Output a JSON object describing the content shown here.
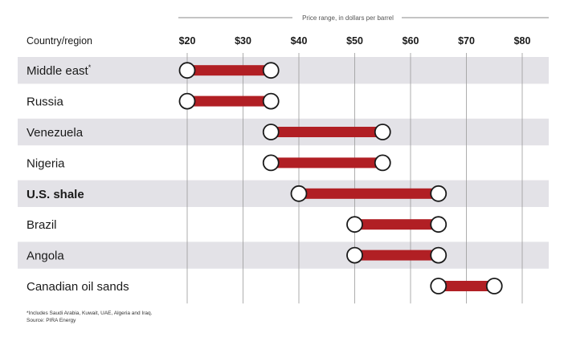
{
  "chart_data": {
    "type": "range",
    "axis_title": "Price range, in dollars per barrel",
    "category_header": "Country/region",
    "ticks": [
      20,
      30,
      40,
      50,
      60,
      70,
      80
    ],
    "tick_labels": [
      "$20",
      "$30",
      "$40",
      "$50",
      "$60",
      "$70",
      "$80"
    ],
    "xlim": [
      20,
      80
    ],
    "rows": [
      {
        "label": "Middle east",
        "marker": "*",
        "low": 20,
        "high": 35,
        "bold": false
      },
      {
        "label": "Russia",
        "low": 20,
        "high": 35,
        "bold": false
      },
      {
        "label": "Venezuela",
        "low": 35,
        "high": 55,
        "bold": false
      },
      {
        "label": "Nigeria",
        "low": 35,
        "high": 55,
        "bold": false
      },
      {
        "label": "U.S. shale",
        "low": 40,
        "high": 65,
        "bold": true
      },
      {
        "label": "Brazil",
        "low": 50,
        "high": 65,
        "bold": false
      },
      {
        "label": "Angola",
        "low": 50,
        "high": 65,
        "bold": false
      },
      {
        "label": "Canadian oil sands",
        "low": 65,
        "high": 75,
        "bold": false
      }
    ],
    "footnotes": [
      "*Includes Saudi Arabia, Kuwait, UAE, Algeria and Iraq.",
      "Source: PIRA Energy"
    ],
    "colors": {
      "bar": "#b11f24",
      "band": "#e3e2e7",
      "marker_fill": "#ffffff",
      "marker_stroke": "#1a1a1a"
    }
  }
}
